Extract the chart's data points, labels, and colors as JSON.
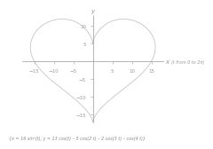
{
  "xlabel": "x",
  "ylabel": "y",
  "t_label": "(t from 0 to 2π)",
  "formula": "{x = 16 sin³(t), y = 13 cos(t) – 5 cos(2 t) – 2 cos(3 t) – cos(4 t)}",
  "xlim": [
    -18,
    18
  ],
  "ylim": [
    -17,
    13
  ],
  "xticks": [
    -15,
    -10,
    -5,
    5,
    10,
    15
  ],
  "yticks": [
    -15,
    -10,
    -5,
    5,
    10
  ],
  "line_color": "#bbbbbb",
  "axes_color": "#999999",
  "tick_color": "#999999",
  "label_color": "#999999",
  "formula_color": "#888888",
  "background_color": "#ffffff",
  "t_points": 1000,
  "line_width": 0.5,
  "axes_lw": 0.5
}
